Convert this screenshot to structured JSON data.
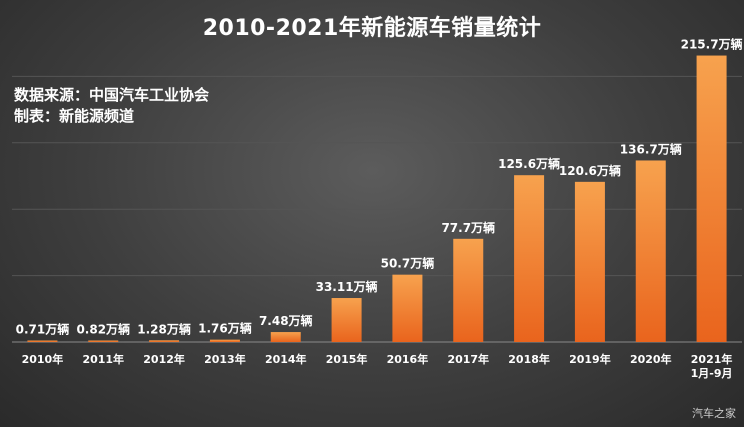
{
  "watermark": "汽车之家",
  "chart_data": {
    "type": "bar",
    "title": "2010-2021年新能源车销量统计",
    "source_lines": [
      "数据来源：中国汽车工业协会",
      "制表：新能源频道"
    ],
    "categories": [
      [
        "2010年"
      ],
      [
        "2011年"
      ],
      [
        "2012年"
      ],
      [
        "2013年"
      ],
      [
        "2014年"
      ],
      [
        "2015年"
      ],
      [
        "2016年"
      ],
      [
        "2017年"
      ],
      [
        "2018年"
      ],
      [
        "2019年"
      ],
      [
        "2020年"
      ],
      [
        "2021年",
        "1月-9月"
      ]
    ],
    "values": [
      0.71,
      0.82,
      1.28,
      1.76,
      7.48,
      33.11,
      50.7,
      77.7,
      125.6,
      120.6,
      136.7,
      215.7
    ],
    "data_labels": [
      "0.71万辆",
      "0.82万辆",
      "1.28万辆",
      "1.76万辆",
      "7.48万辆",
      "33.11万辆",
      "50.7万辆",
      "77.7万辆",
      "125.6万辆",
      "120.6万辆",
      "136.7万辆",
      "215.7万辆"
    ],
    "ylim": [
      0,
      250
    ],
    "grid": true,
    "colors": {
      "bar_top": "#f7a24e",
      "bar_bottom": "#e9641d",
      "gridline": "#555555",
      "label": "#ffffff"
    }
  }
}
